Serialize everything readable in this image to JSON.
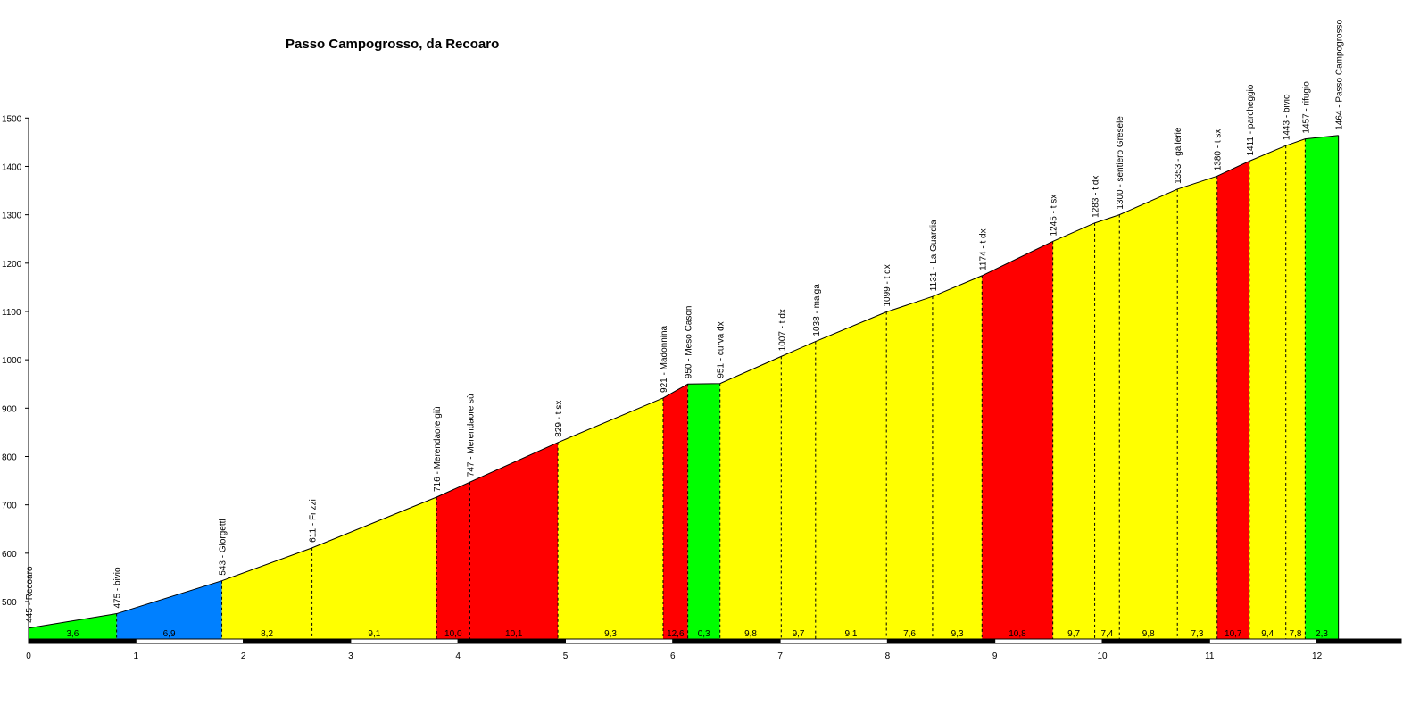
{
  "chart_data": {
    "type": "area",
    "title": "Passo Campogrosso, da Recoaro",
    "xlabel": "",
    "ylabel": "",
    "xlim": [
      0,
      13
    ],
    "ylim": [
      420,
      1500
    ],
    "x_ticks": [
      0,
      1,
      2,
      3,
      4,
      5,
      6,
      7,
      8,
      9,
      10,
      11,
      12
    ],
    "y_ticks": [
      500,
      600,
      700,
      800,
      900,
      1000,
      1100,
      1200,
      1300,
      1400,
      1500
    ],
    "waypoints": [
      {
        "km": 0.0,
        "alt": 445,
        "label": "445 - Recoaro"
      },
      {
        "km": 0.82,
        "alt": 475,
        "label": "475 - bivio"
      },
      {
        "km": 1.8,
        "alt": 543,
        "label": "543 - Giorgetti"
      },
      {
        "km": 2.64,
        "alt": 611,
        "label": "611 - Frizzi"
      },
      {
        "km": 3.8,
        "alt": 716,
        "label": "716 - Merendaore giù"
      },
      {
        "km": 4.11,
        "alt": 747,
        "label": "747 - Merendaore sù"
      },
      {
        "km": 4.93,
        "alt": 829,
        "label": "829 - t sx"
      },
      {
        "km": 5.91,
        "alt": 921,
        "label": "921 - Madonnina"
      },
      {
        "km": 6.14,
        "alt": 950,
        "label": "950 - Meso Cason"
      },
      {
        "km": 6.44,
        "alt": 951,
        "label": "951 - curva dx"
      },
      {
        "km": 7.01,
        "alt": 1007,
        "label": "1007 - t dx"
      },
      {
        "km": 7.33,
        "alt": 1038,
        "label": "1038 - malga"
      },
      {
        "km": 7.99,
        "alt": 1099,
        "label": "1099 - t dx"
      },
      {
        "km": 8.42,
        "alt": 1131,
        "label": "1131 - La Guardia"
      },
      {
        "km": 8.88,
        "alt": 1174,
        "label": "1174 - t dx"
      },
      {
        "km": 9.54,
        "alt": 1245,
        "label": "1245 - t sx"
      },
      {
        "km": 9.93,
        "alt": 1283,
        "label": "1283 - t dx"
      },
      {
        "km": 10.16,
        "alt": 1300,
        "label": "1300 - sentiero Gresele"
      },
      {
        "km": 10.7,
        "alt": 1353,
        "label": "1353 - gallerie"
      },
      {
        "km": 11.07,
        "alt": 1380,
        "label": "1380 - t sx"
      },
      {
        "km": 11.37,
        "alt": 1411,
        "label": "1411 - parcheggio"
      },
      {
        "km": 11.71,
        "alt": 1443,
        "label": "1443 - bivio"
      },
      {
        "km": 11.89,
        "alt": 1457,
        "label": "1457 - rifugio"
      },
      {
        "km": 12.2,
        "alt": 1464,
        "label": "1464 - Passo Campogrosso"
      }
    ],
    "segments": [
      {
        "gradient": "3,6",
        "color": "#00ff00"
      },
      {
        "gradient": "6,9",
        "color": "#0080ff"
      },
      {
        "gradient": "8,2",
        "color": "#ffff00"
      },
      {
        "gradient": "9,1",
        "color": "#ffff00"
      },
      {
        "gradient": "10,0",
        "color": "#ff0000"
      },
      {
        "gradient": "10,1",
        "color": "#ff0000"
      },
      {
        "gradient": "9,3",
        "color": "#ffff00"
      },
      {
        "gradient": "12,6",
        "color": "#ff0000"
      },
      {
        "gradient": "0,3",
        "color": "#00ff00"
      },
      {
        "gradient": "9,8",
        "color": "#ffff00"
      },
      {
        "gradient": "9,7",
        "color": "#ffff00"
      },
      {
        "gradient": "9,1",
        "color": "#ffff00"
      },
      {
        "gradient": "7,6",
        "color": "#ffff00"
      },
      {
        "gradient": "9,3",
        "color": "#ffff00"
      },
      {
        "gradient": "10,8",
        "color": "#ff0000"
      },
      {
        "gradient": "9,7",
        "color": "#ffff00"
      },
      {
        "gradient": "7,4",
        "color": "#ffff00"
      },
      {
        "gradient": "9,8",
        "color": "#ffff00"
      },
      {
        "gradient": "7,3",
        "color": "#ffff00"
      },
      {
        "gradient": "10,7",
        "color": "#ff0000"
      },
      {
        "gradient": "9,4",
        "color": "#ffff00"
      },
      {
        "gradient": "7,8",
        "color": "#ffff00"
      },
      {
        "gradient": "2,3",
        "color": "#00ff00"
      }
    ],
    "grid": false,
    "legend": "none"
  }
}
